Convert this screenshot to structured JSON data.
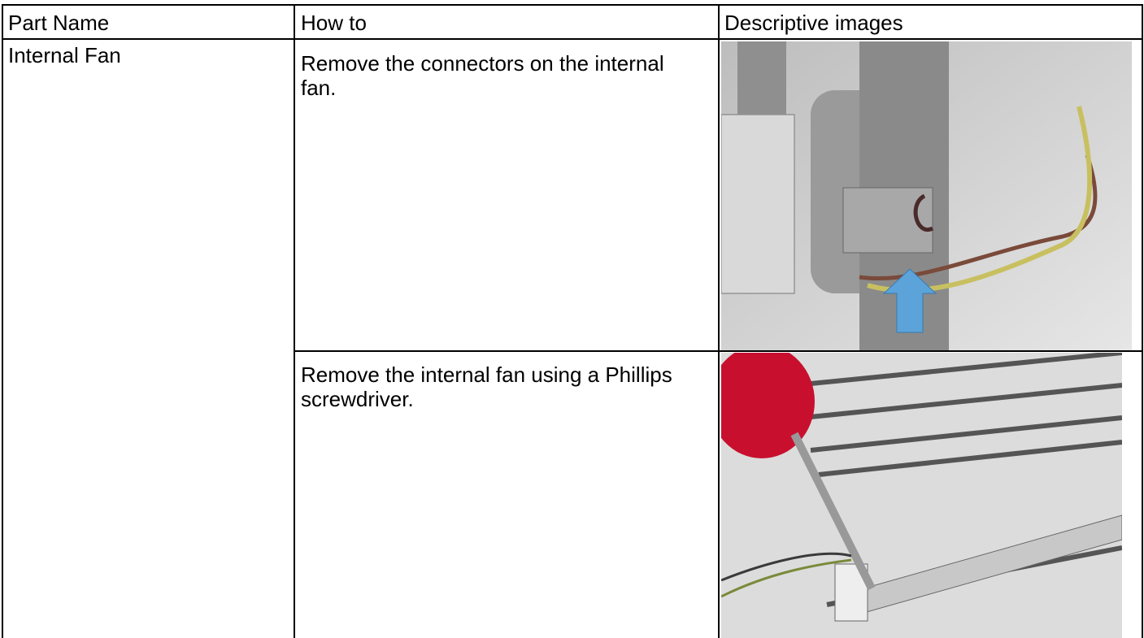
{
  "table": {
    "header": [
      "Part Name",
      "How to",
      "Descriptive images"
    ],
    "rows": [
      {
        "part": "Internal Fan",
        "steps": [
          "Remove the connectors on the internal fan.",
          "Remove the internal fan using a Phillips screwdriver."
        ]
      }
    ]
  }
}
